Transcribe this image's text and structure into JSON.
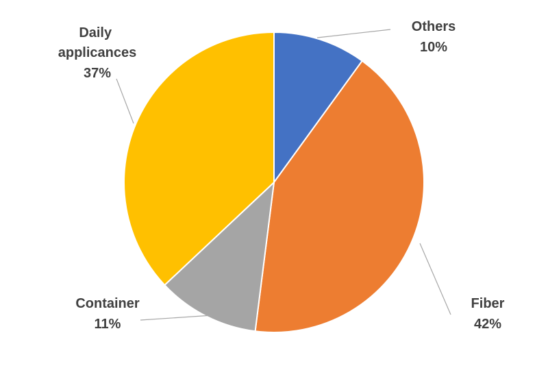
{
  "chart_data": {
    "type": "pie",
    "title": "",
    "start_angle_deg": 0,
    "direction": "clockwise",
    "slices": [
      {
        "label": "Others",
        "percent_label": "10%",
        "value": 10,
        "color": "#4472C4"
      },
      {
        "label": "Fiber",
        "percent_label": "42%",
        "value": 42,
        "color": "#ED7D31"
      },
      {
        "label": "Container",
        "percent_label": "11%",
        "value": 11,
        "color": "#A5A5A5"
      },
      {
        "label": "Daily applicances",
        "percent_label": "37%",
        "value": 37,
        "color": "#FFC000"
      }
    ],
    "legend": "none",
    "data_labels": "outside with leader lines"
  }
}
